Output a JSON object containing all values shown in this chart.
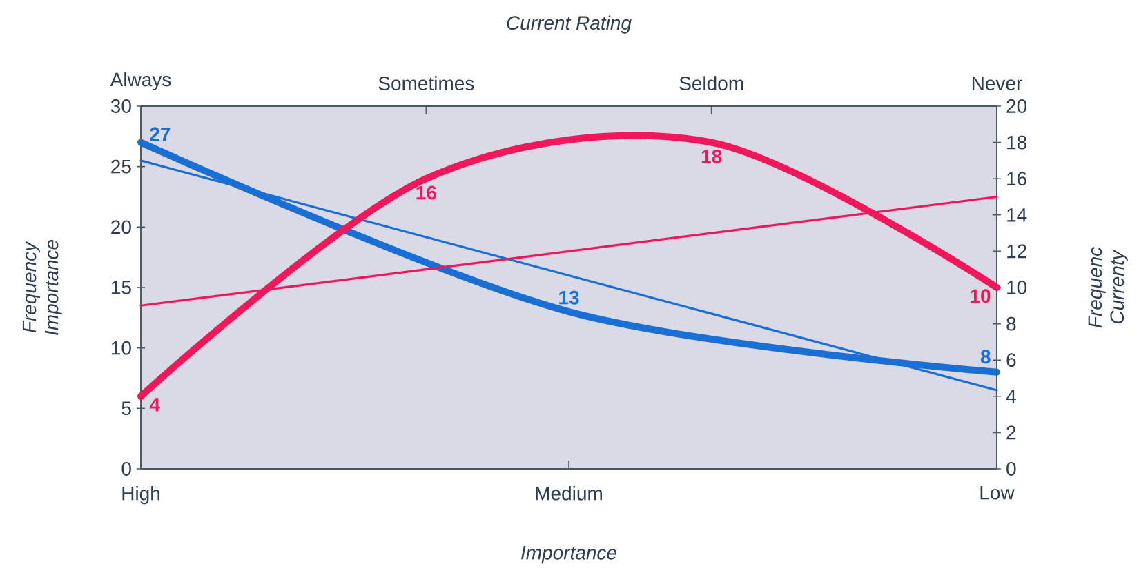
{
  "chart_data": [
    {
      "type": "line",
      "xlabel": "Importance",
      "ylabel": "Frequency Importance",
      "categories": [
        "High",
        "Medium",
        "Low"
      ],
      "ylim": [
        0,
        30
      ],
      "yticks": [
        0,
        5,
        10,
        15,
        20,
        25,
        30
      ],
      "marker": "none",
      "line_style": "solid",
      "series": [
        {
          "color": "#1a6fd4",
          "values": [
            27,
            13,
            8
          ],
          "value_labels": [
            "27",
            "13",
            "8"
          ]
        },
        {
          "color": "#1a6fd4",
          "values": [
            25.5,
            16,
            6.5
          ]
        }
      ]
    },
    {
      "type": "line",
      "xlabel": "Current Rating",
      "ylabel": "Frequenc Currenty",
      "categories": [
        "Always",
        "Sometimes",
        "Seldom",
        "Never"
      ],
      "ylim": [
        0,
        20
      ],
      "yticks": [
        0,
        2,
        4,
        6,
        8,
        10,
        12,
        14,
        16,
        18,
        20
      ],
      "marker": "none",
      "line_style": "solid",
      "series": [
        {
          "color": "#f0185a",
          "values": [
            4,
            16,
            18,
            10
          ],
          "value_labels": [
            "4",
            "16",
            "18",
            "10"
          ]
        },
        {
          "color": "#f0185a",
          "values": [
            9,
            11,
            13,
            15
          ]
        }
      ]
    }
  ]
}
